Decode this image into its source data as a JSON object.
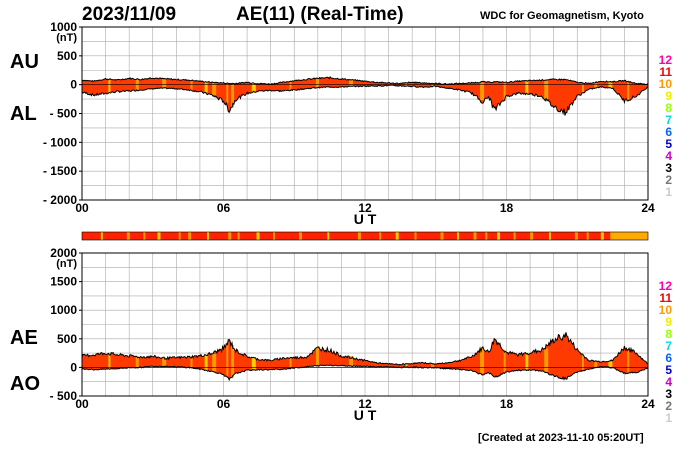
{
  "header": {
    "date": "2023/11/09",
    "title": "AE(11) (Real-Time)",
    "org": "WDC for Geomagnetism, Kyoto"
  },
  "footer": {
    "created": "[Created at 2023-11-10 05:20UT]"
  },
  "legend": {
    "levels": [
      "12",
      "11",
      "10",
      "9",
      "8",
      "7",
      "6",
      "5",
      "4",
      "3",
      "2",
      "1"
    ],
    "colors": [
      "#ff00aa",
      "#ff0000",
      "#ff9900",
      "#eeee00",
      "#99ff00",
      "#00dddd",
      "#0066ff",
      "#0000cc",
      "#cc00cc",
      "#000000",
      "#777777",
      "#cccccc"
    ]
  },
  "chart_data": [
    {
      "type": "area",
      "name": "AU/AL",
      "labels": {
        "upper": "AU",
        "lower": "AL"
      },
      "ylabel": "(nT)",
      "xlabel": "U T",
      "xlim": [
        0,
        24
      ],
      "ylim": [
        -2000,
        1000
      ],
      "yticks": [
        "1000",
        "500",
        "0",
        "- 500",
        "- 1000",
        "- 1500",
        "- 2000"
      ],
      "ytick_values": [
        1000,
        500,
        0,
        -500,
        -1000,
        -1500,
        -2000
      ],
      "xticks": [
        "00",
        "06",
        "12",
        "18",
        "24"
      ],
      "xtick_values": [
        0,
        6,
        12,
        18,
        24
      ],
      "fill_colors": {
        "primary": "#ff3a00",
        "secondary": "#ff9900",
        "tertiary": "#ffcc00"
      },
      "x": [
        0,
        0.5,
        1,
        1.5,
        2,
        2.5,
        3,
        3.5,
        4,
        4.5,
        5,
        5.5,
        6,
        6.25,
        6.5,
        7,
        7.5,
        8,
        8.5,
        9,
        9.5,
        10,
        10.5,
        11,
        11.5,
        12,
        12.5,
        13,
        13.5,
        14,
        14.5,
        15,
        15.5,
        16,
        16.5,
        17,
        17.25,
        17.5,
        18,
        18.5,
        19,
        19.5,
        20,
        20.5,
        21,
        21.5,
        22,
        22.5,
        23,
        23.5,
        24
      ],
      "AU": [
        80,
        60,
        100,
        80,
        110,
        90,
        120,
        100,
        90,
        80,
        60,
        40,
        30,
        20,
        20,
        40,
        20,
        10,
        40,
        70,
        90,
        110,
        120,
        100,
        80,
        60,
        40,
        30,
        20,
        40,
        30,
        20,
        10,
        20,
        30,
        50,
        40,
        50,
        40,
        60,
        70,
        80,
        90,
        90,
        40,
        20,
        60,
        50,
        70,
        20,
        10
      ],
      "AL": [
        -130,
        -180,
        -150,
        -120,
        -110,
        -90,
        -70,
        -60,
        -70,
        -90,
        -120,
        -180,
        -280,
        -450,
        -260,
        -150,
        -110,
        -100,
        -110,
        -90,
        -70,
        -50,
        -40,
        -40,
        -30,
        -25,
        -20,
        -15,
        -20,
        -30,
        -40,
        -30,
        -60,
        -90,
        -140,
        -300,
        -210,
        -440,
        -200,
        -150,
        -160,
        -200,
        -380,
        -480,
        -200,
        -80,
        -40,
        -60,
        -280,
        -200,
        -40
      ]
    },
    {
      "type": "area",
      "name": "AE/AO",
      "labels": {
        "upper": "AE",
        "lower": "AO"
      },
      "ylabel": "(nT)",
      "xlabel": "U T",
      "xlim": [
        0,
        24
      ],
      "ylim": [
        -500,
        2000
      ],
      "yticks": [
        "2000",
        "1500",
        "1000",
        "500",
        "0",
        "- 500"
      ],
      "ytick_values": [
        2000,
        1500,
        1000,
        500,
        0,
        -500
      ],
      "xticks": [
        "00",
        "06",
        "12",
        "18",
        "24"
      ],
      "xtick_values": [
        0,
        6,
        12,
        18,
        24
      ],
      "x": [
        0,
        0.5,
        1,
        1.5,
        2,
        2.5,
        3,
        3.5,
        4,
        4.5,
        5,
        5.5,
        6,
        6.25,
        6.5,
        7,
        7.5,
        8,
        8.5,
        9,
        9.5,
        10,
        10.5,
        11,
        11.5,
        12,
        12.5,
        13,
        13.5,
        14,
        14.5,
        15,
        15.5,
        16,
        16.5,
        17,
        17.25,
        17.5,
        18,
        18.5,
        19,
        19.5,
        20,
        20.5,
        21,
        21.5,
        22,
        22.5,
        23,
        23.5,
        24
      ],
      "AE": [
        200,
        220,
        250,
        220,
        200,
        180,
        190,
        160,
        170,
        180,
        200,
        240,
        330,
        470,
        300,
        190,
        140,
        120,
        160,
        170,
        180,
        340,
        300,
        200,
        160,
        120,
        80,
        60,
        50,
        70,
        80,
        60,
        80,
        120,
        180,
        340,
        260,
        500,
        260,
        220,
        260,
        300,
        470,
        570,
        300,
        120,
        100,
        120,
        350,
        250,
        60
      ],
      "AO": [
        -20,
        -40,
        -30,
        -20,
        -5,
        0,
        20,
        20,
        10,
        0,
        -30,
        -70,
        -120,
        -220,
        -110,
        -50,
        -40,
        -40,
        -30,
        -10,
        10,
        30,
        40,
        30,
        25,
        20,
        10,
        10,
        0,
        5,
        -5,
        -5,
        -25,
        -35,
        -55,
        -130,
        -90,
        -180,
        -80,
        -50,
        -45,
        -60,
        -150,
        -200,
        -80,
        -30,
        10,
        -5,
        -100,
        -90,
        -15
      ],
      "bar_label": "AE intensity strip"
    }
  ]
}
